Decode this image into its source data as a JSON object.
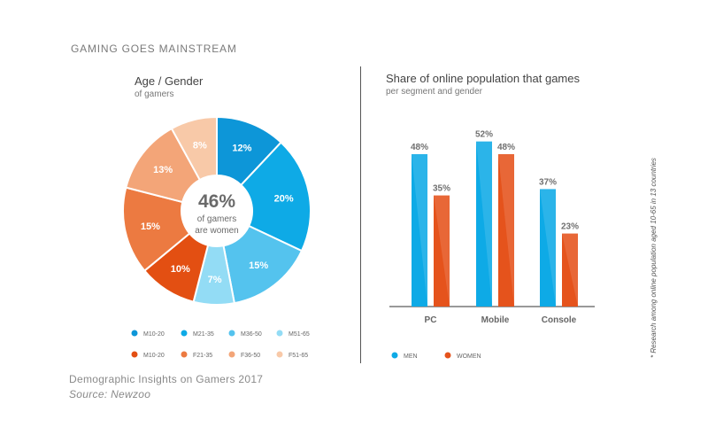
{
  "header": "GAMING GOES MAINSTREAM",
  "footer": {
    "title": "Demographic Insights on Gamers 2017",
    "source": "Source: Newzoo"
  },
  "footnote": "* Research among online population aged 10-65 in 13 countries",
  "chart_data": [
    {
      "type": "pie",
      "style": "donut",
      "title": "Age / Gender",
      "subtitle": "of gamers",
      "center": {
        "value": "46%",
        "line1": "of gamers",
        "line2": "are women"
      },
      "slices": [
        {
          "label": "M10-20",
          "value": 12,
          "text": "12%",
          "color": "#0d96d8"
        },
        {
          "label": "M21-35",
          "value": 20,
          "text": "20%",
          "color": "#0eaae6"
        },
        {
          "label": "M36-50",
          "value": 15,
          "text": "15%",
          "color": "#54c3ee"
        },
        {
          "label": "M51-65",
          "value": 7,
          "text": "7%",
          "color": "#93dcf5"
        },
        {
          "label": "M10-20",
          "value": 10,
          "text": "10%",
          "color": "#e34f12"
        },
        {
          "label": "F21-35",
          "value": 15,
          "text": "15%",
          "color": "#ec7a41"
        },
        {
          "label": "F36-50",
          "value": 13,
          "text": "13%",
          "color": "#f3a578"
        },
        {
          "label": "F51-65",
          "value": 8,
          "text": "8%",
          "color": "#f8c9a8"
        }
      ],
      "legend_placement": "bottom"
    },
    {
      "type": "bar",
      "title": "Share of online population that games",
      "subtitle": "per segment and gender",
      "categories": [
        "PC",
        "Mobile",
        "Console"
      ],
      "series": [
        {
          "name": "MEN",
          "values": [
            48,
            52,
            37
          ],
          "labels": [
            "48%",
            "52%",
            "37%"
          ],
          "color": "#0eaae6"
        },
        {
          "name": "WOMEN",
          "values": [
            35,
            48,
            23
          ],
          "labels": [
            "35%",
            "48%",
            "23%"
          ],
          "color": "#e5531c"
        }
      ],
      "unit": "%",
      "ylim": [
        0,
        60
      ],
      "legend_placement": "bottom-left",
      "grid": false
    }
  ]
}
